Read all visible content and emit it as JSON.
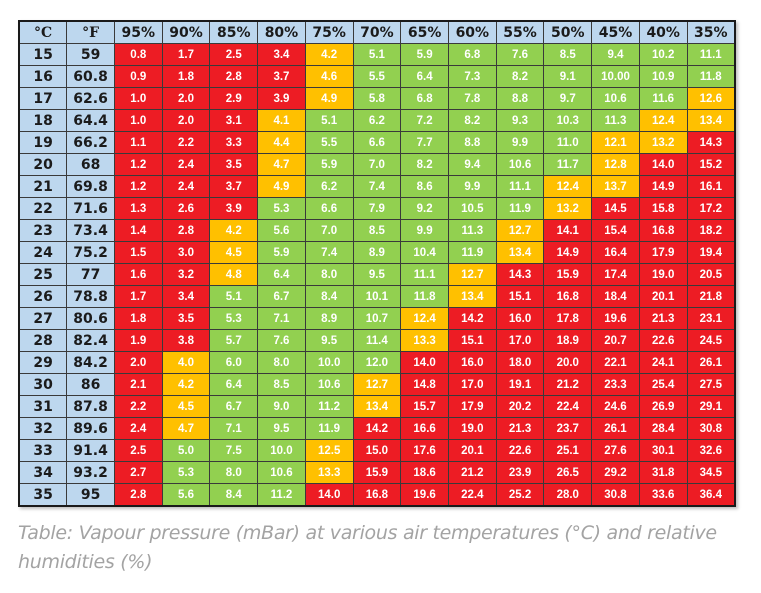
{
  "table": {
    "headers": [
      "°C",
      "°F",
      "95%",
      "90%",
      "85%",
      "80%",
      "75%",
      "70%",
      "65%",
      "60%",
      "55%",
      "50%",
      "45%",
      "40%",
      "35%"
    ],
    "colors": {
      "R": "#ed1c24",
      "Y": "#ffc000",
      "G": "#92d050",
      "header": "#bdd7ee"
    },
    "rows": [
      {
        "c": "15",
        "f": "59",
        "values": [
          "0.8",
          "1.7",
          "2.5",
          "3.4",
          "4.2",
          "5.1",
          "5.9",
          "6.8",
          "7.6",
          "8.5",
          "9.4",
          "10.2",
          "11.1"
        ],
        "status": "RRRRYGGGGGGGG"
      },
      {
        "c": "16",
        "f": "60.8",
        "values": [
          "0.9",
          "1.8",
          "2.8",
          "3.7",
          "4.6",
          "5.5",
          "6.4",
          "7.3",
          "8.2",
          "9.1",
          "10.00",
          "10.9",
          "11.8"
        ],
        "status": "RRRRYGGGGGGGG"
      },
      {
        "c": "17",
        "f": "62.6",
        "values": [
          "1.0",
          "2.0",
          "2.9",
          "3.9",
          "4.9",
          "5.8",
          "6.8",
          "7.8",
          "8.8",
          "9.7",
          "10.6",
          "11.6",
          "12.6"
        ],
        "status": "RRRRYGGGGGGGY"
      },
      {
        "c": "18",
        "f": "64.4",
        "values": [
          "1.0",
          "2.0",
          "3.1",
          "4.1",
          "5.1",
          "6.2",
          "7.2",
          "8.2",
          "9.3",
          "10.3",
          "11.3",
          "12.4",
          "13.4"
        ],
        "status": "RRRYGGGGGGGYY"
      },
      {
        "c": "19",
        "f": "66.2",
        "values": [
          "1.1",
          "2.2",
          "3.3",
          "4.4",
          "5.5",
          "6.6",
          "7.7",
          "8.8",
          "9.9",
          "11.0",
          "12.1",
          "13.2",
          "14.3"
        ],
        "status": "RRRYGGGGGGYYR"
      },
      {
        "c": "20",
        "f": "68",
        "values": [
          "1.2",
          "2.4",
          "3.5",
          "4.7",
          "5.9",
          "7.0",
          "8.2",
          "9.4",
          "10.6",
          "11.7",
          "12.8",
          "14.0",
          "15.2"
        ],
        "status": "RRRYGGGGGGYRR"
      },
      {
        "c": "21",
        "f": "69.8",
        "values": [
          "1.2",
          "2.4",
          "3.7",
          "4.9",
          "6.2",
          "7.4",
          "8.6",
          "9.9",
          "11.1",
          "12.4",
          "13.7",
          "14.9",
          "16.1"
        ],
        "status": "RRRYGGGGGYYRR"
      },
      {
        "c": "22",
        "f": "71.6",
        "values": [
          "1.3",
          "2.6",
          "3.9",
          "5.3",
          "6.6",
          "7.9",
          "9.2",
          "10.5",
          "11.9",
          "13.2",
          "14.5",
          "15.8",
          "17.2"
        ],
        "status": "RRRGGGGGGYRRR"
      },
      {
        "c": "23",
        "f": "73.4",
        "values": [
          "1.4",
          "2.8",
          "4.2",
          "5.6",
          "7.0",
          "8.5",
          "9.9",
          "11.3",
          "12.7",
          "14.1",
          "15.4",
          "16.8",
          "18.2"
        ],
        "status": "RRYGGGGGYRRRR"
      },
      {
        "c": "24",
        "f": "75.2",
        "values": [
          "1.5",
          "3.0",
          "4.5",
          "5.9",
          "7.4",
          "8.9",
          "10.4",
          "11.9",
          "13.4",
          "14.9",
          "16.4",
          "17.9",
          "19.4"
        ],
        "status": "RRYGGGGGYRRRR"
      },
      {
        "c": "25",
        "f": "77",
        "values": [
          "1.6",
          "3.2",
          "4.8",
          "6.4",
          "8.0",
          "9.5",
          "11.1",
          "12.7",
          "14.3",
          "15.9",
          "17.4",
          "19.0",
          "20.5"
        ],
        "status": "RRYGGGGYRRRRR"
      },
      {
        "c": "26",
        "f": "78.8",
        "values": [
          "1.7",
          "3.4",
          "5.1",
          "6.7",
          "8.4",
          "10.1",
          "11.8",
          "13.4",
          "15.1",
          "16.8",
          "18.4",
          "20.1",
          "21.8"
        ],
        "status": "RRGGGGGYRRRRR"
      },
      {
        "c": "27",
        "f": "80.6",
        "values": [
          "1.8",
          "3.5",
          "5.3",
          "7.1",
          "8.9",
          "10.7",
          "12.4",
          "14.2",
          "16.0",
          "17.8",
          "19.6",
          "21.3",
          "23.1"
        ],
        "status": "RRGGGGYRRRRRR"
      },
      {
        "c": "28",
        "f": "82.4",
        "values": [
          "1.9",
          "3.8",
          "5.7",
          "7.6",
          "9.5",
          "11.4",
          "13.3",
          "15.1",
          "17.0",
          "18.9",
          "20.7",
          "22.6",
          "24.5"
        ],
        "status": "RRGGGGYRRRRRR"
      },
      {
        "c": "29",
        "f": "84.2",
        "values": [
          "2.0",
          "4.0",
          "6.0",
          "8.0",
          "10.0",
          "12.0",
          "14.0",
          "16.0",
          "18.0",
          "20.0",
          "22.1",
          "24.1",
          "26.1"
        ],
        "status": "RYGGGGRRRRRRR"
      },
      {
        "c": "30",
        "f": "86",
        "values": [
          "2.1",
          "4.2",
          "6.4",
          "8.5",
          "10.6",
          "12.7",
          "14.8",
          "17.0",
          "19.1",
          "21.2",
          "23.3",
          "25.4",
          "27.5"
        ],
        "status": "RYGGGYRRRRRRR"
      },
      {
        "c": "31",
        "f": "87.8",
        "values": [
          "2.2",
          "4.5",
          "6.7",
          "9.0",
          "11.2",
          "13.4",
          "15.7",
          "17.9",
          "20.2",
          "22.4",
          "24.6",
          "26.9",
          "29.1"
        ],
        "status": "RYGGGYRRRRRRR"
      },
      {
        "c": "32",
        "f": "89.6",
        "values": [
          "2.4",
          "4.7",
          "7.1",
          "9.5",
          "11.9",
          "14.2",
          "16.6",
          "19.0",
          "21.3",
          "23.7",
          "26.1",
          "28.4",
          "30.8"
        ],
        "status": "RYGGGRRRRRRRR"
      },
      {
        "c": "33",
        "f": "91.4",
        "values": [
          "2.5",
          "5.0",
          "7.5",
          "10.0",
          "12.5",
          "15.0",
          "17.6",
          "20.1",
          "22.6",
          "25.1",
          "27.6",
          "30.1",
          "32.6"
        ],
        "status": "RGGGYRRRRRRRR"
      },
      {
        "c": "34",
        "f": "93.2",
        "values": [
          "2.7",
          "5.3",
          "8.0",
          "10.6",
          "13.3",
          "15.9",
          "18.6",
          "21.2",
          "23.9",
          "26.5",
          "29.2",
          "31.8",
          "34.5"
        ],
        "status": "RGGGYRRRRRRRR"
      },
      {
        "c": "35",
        "f": "95",
        "values": [
          "2.8",
          "5.6",
          "8.4",
          "11.2",
          "14.0",
          "16.8",
          "19.6",
          "22.4",
          "25.2",
          "28.0",
          "30.8",
          "33.6",
          "36.4"
        ],
        "status": "RGGGRRRRRRRRR"
      }
    ]
  },
  "caption": "Table: Vapour pressure (mBar) at various air temperatures (°C) and relative humidities (%)"
}
